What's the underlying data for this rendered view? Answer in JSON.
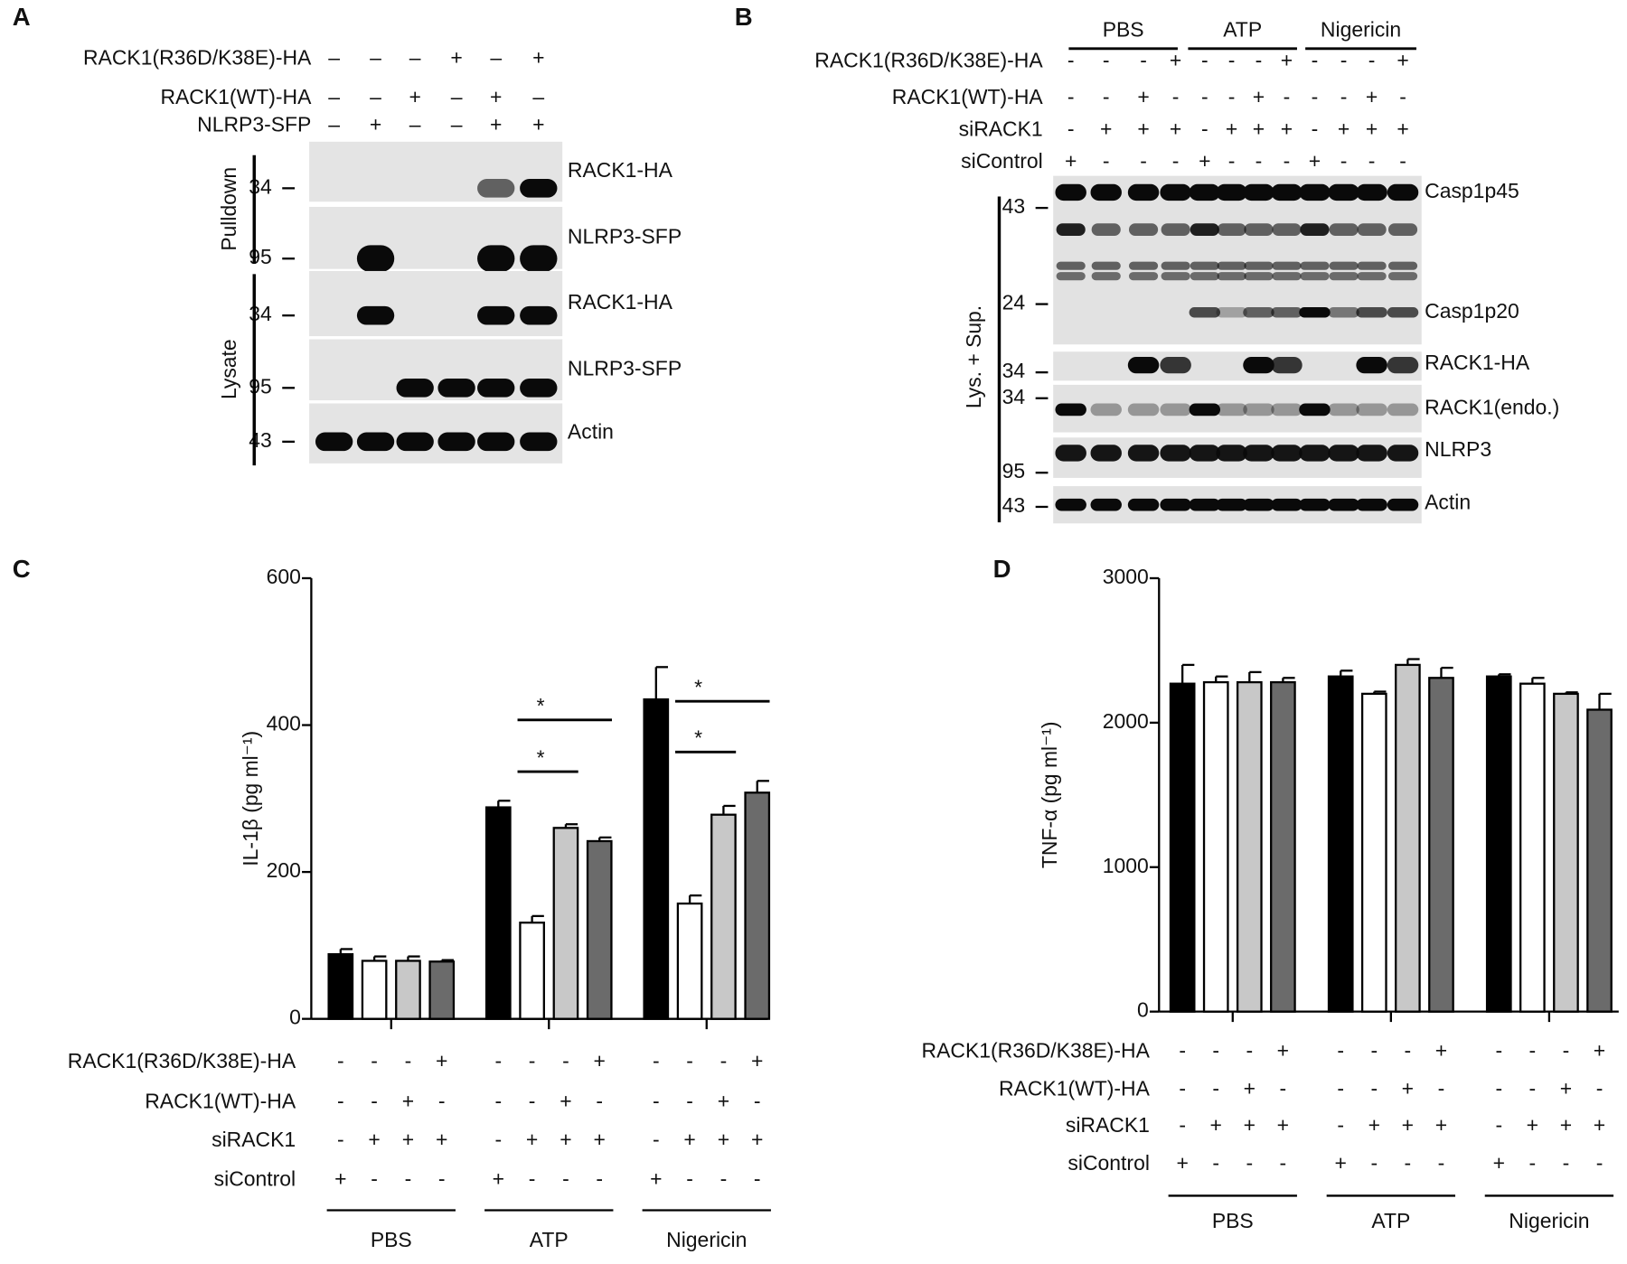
{
  "panels": {
    "A": {
      "label": "A",
      "conditions": [
        {
          "label": "RACK1(R36D/K38E)-HA",
          "marks": [
            "–",
            "–",
            "–",
            "+",
            "–",
            "+"
          ]
        },
        {
          "label": "RACK1(WT)-HA",
          "marks": [
            "–",
            "–",
            "+",
            "–",
            "+",
            "–"
          ]
        },
        {
          "label": "NLRP3-SFP",
          "marks": [
            "–",
            "+",
            "–",
            "–",
            "+",
            "+"
          ]
        }
      ],
      "groups": [
        "Pulldown",
        "Lysate"
      ],
      "markers": [
        "34",
        "95",
        "34",
        "95",
        "43"
      ],
      "bands": [
        "RACK1-HA",
        "NLRP3-SFP",
        "RACK1-HA",
        "NLRP3-SFP",
        "Actin"
      ]
    },
    "B": {
      "label": "B",
      "groups": [
        "PBS",
        "ATP",
        "Nigericin"
      ],
      "conditions": [
        {
          "label": "RACK1(R36D/K38E)-HA",
          "marks": [
            "-",
            "-",
            "-",
            "+",
            "-",
            "-",
            "-",
            "+",
            "-",
            "-",
            "-",
            "+"
          ]
        },
        {
          "label": "RACK1(WT)-HA",
          "marks": [
            "-",
            "-",
            "+",
            "-",
            "-",
            "-",
            "+",
            "-",
            "-",
            "-",
            "+",
            "-"
          ]
        },
        {
          "label": "siRACK1",
          "marks": [
            "-",
            "+",
            "+",
            "+",
            "-",
            "+",
            "+",
            "+",
            "-",
            "+",
            "+",
            "+"
          ]
        },
        {
          "label": "siControl",
          "marks": [
            "+",
            "-",
            "-",
            "-",
            "+",
            "-",
            "-",
            "-",
            "+",
            "-",
            "-",
            "-"
          ]
        }
      ],
      "side": "Lys. + Sup.",
      "markers": [
        "43",
        "24",
        "34",
        "34",
        "95",
        "43"
      ],
      "bands": [
        "Casp1p45",
        "Casp1p20",
        "RACK1-HA",
        "RACK1(endo.)",
        "NLRP3",
        "Actin"
      ]
    }
  },
  "chart_data": [
    {
      "type": "bar",
      "panel_label": "C",
      "ylabel": "IL-1β (pg ml⁻¹)",
      "categories": [
        "PBS",
        "ATP",
        "Nigericin"
      ],
      "series": [
        {
          "color": "#000000",
          "values": [
            88,
            288,
            435
          ],
          "errors": [
            7,
            9,
            44
          ]
        },
        {
          "color": "#ffffff",
          "values": [
            79,
            131,
            157
          ],
          "errors": [
            6,
            9,
            11
          ]
        },
        {
          "color": "#c8c8c8",
          "values": [
            79,
            260,
            278
          ],
          "errors": [
            6,
            5,
            12
          ]
        },
        {
          "color": "#6b6b6b",
          "values": [
            78,
            242,
            308
          ],
          "errors": [
            2,
            5,
            16
          ]
        }
      ],
      "ylim": [
        0,
        600
      ],
      "yticks": [
        0,
        200,
        400,
        600
      ],
      "annotations": [
        "*",
        "*",
        "*",
        "*"
      ],
      "conditions": [
        {
          "label": "RACK1(R36D/K38E)-HA",
          "marks": [
            "-",
            "-",
            "-",
            "+",
            "-",
            "-",
            "-",
            "+",
            "-",
            "-",
            "-",
            "+"
          ]
        },
        {
          "label": "RACK1(WT)-HA",
          "marks": [
            "-",
            "-",
            "+",
            "-",
            "-",
            "-",
            "+",
            "-",
            "-",
            "-",
            "+",
            "-"
          ]
        },
        {
          "label": "siRACK1",
          "marks": [
            "-",
            "+",
            "+",
            "+",
            "-",
            "+",
            "+",
            "+",
            "-",
            "+",
            "+",
            "+"
          ]
        },
        {
          "label": "siControl",
          "marks": [
            "+",
            "-",
            "-",
            "-",
            "+",
            "-",
            "-",
            "-",
            "+",
            "-",
            "-",
            "-"
          ]
        }
      ]
    },
    {
      "type": "bar",
      "panel_label": "D",
      "ylabel": "TNF-α (pg ml⁻¹)",
      "categories": [
        "PBS",
        "ATP",
        "Nigericin"
      ],
      "series": [
        {
          "color": "#000000",
          "values": [
            2270,
            2320,
            2320
          ],
          "errors": [
            130,
            40,
            15
          ]
        },
        {
          "color": "#ffffff",
          "values": [
            2280,
            2200,
            2270
          ],
          "errors": [
            40,
            15,
            40
          ]
        },
        {
          "color": "#c8c8c8",
          "values": [
            2280,
            2400,
            2200
          ],
          "errors": [
            70,
            40,
            10
          ]
        },
        {
          "color": "#6b6b6b",
          "values": [
            2280,
            2310,
            2090
          ],
          "errors": [
            30,
            70,
            110
          ]
        }
      ],
      "ylim": [
        0,
        3000
      ],
      "yticks": [
        0,
        1000,
        2000,
        3000
      ],
      "conditions": [
        {
          "label": "RACK1(R36D/K38E)-HA",
          "marks": [
            "-",
            "-",
            "-",
            "+",
            "-",
            "-",
            "-",
            "+",
            "-",
            "-",
            "-",
            "+"
          ]
        },
        {
          "label": "RACK1(WT)-HA",
          "marks": [
            "-",
            "-",
            "+",
            "-",
            "-",
            "-",
            "+",
            "-",
            "-",
            "-",
            "+",
            "-"
          ]
        },
        {
          "label": "siRACK1",
          "marks": [
            "-",
            "+",
            "+",
            "+",
            "-",
            "+",
            "+",
            "+",
            "-",
            "+",
            "+",
            "+"
          ]
        },
        {
          "label": "siControl",
          "marks": [
            "+",
            "-",
            "-",
            "-",
            "+",
            "-",
            "-",
            "-",
            "+",
            "-",
            "-",
            "-"
          ]
        }
      ]
    }
  ]
}
